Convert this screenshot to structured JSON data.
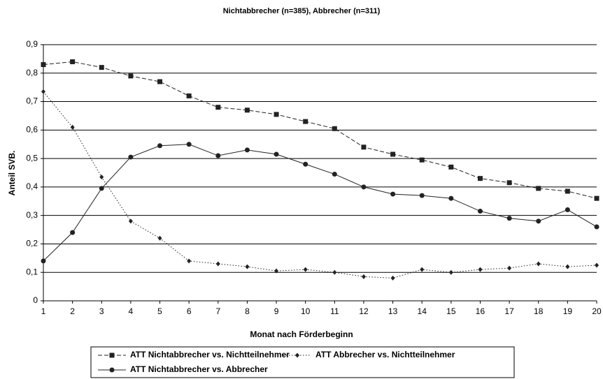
{
  "chart_data": {
    "type": "line",
    "title": "Nichtabbrecher (n=385), Abbrecher (n=311)",
    "x_label": "Monat nach Förderbeginn",
    "y_label": "Anteil SVB.",
    "x": [
      1,
      2,
      3,
      4,
      5,
      6,
      7,
      8,
      9,
      10,
      11,
      12,
      13,
      14,
      15,
      16,
      17,
      18,
      19,
      20
    ],
    "xlim": [
      1,
      20
    ],
    "xticks": [
      1,
      2,
      3,
      4,
      5,
      6,
      7,
      8,
      9,
      10,
      11,
      12,
      13,
      14,
      15,
      16,
      17,
      18,
      19,
      20
    ],
    "ylim": [
      0,
      0.9
    ],
    "yticks": [
      0,
      {
        "value": 0.1,
        "label": "0,1"
      },
      {
        "value": 0.2,
        "label": "0,2"
      },
      {
        "value": 0.3,
        "label": "0,3"
      },
      {
        "value": 0.4,
        "label": "0,4"
      },
      {
        "value": 0.5,
        "label": "0,5"
      },
      {
        "value": 0.6,
        "label": "0,6"
      },
      {
        "value": 0.7,
        "label": "0,7"
      },
      {
        "value": 0.8,
        "label": "0,8"
      },
      {
        "value": 0.9,
        "label": "0,9"
      }
    ],
    "grid": true,
    "legend": "bottom",
    "series": [
      {
        "name": "ATT Nichtabbrecher vs. Nichtteilnehmer",
        "color": "#222222",
        "marker": "square",
        "dash": "dashed",
        "values": [
          0.83,
          0.84,
          0.82,
          0.79,
          0.77,
          0.72,
          0.68,
          0.67,
          0.655,
          0.63,
          0.605,
          0.54,
          0.515,
          0.495,
          0.47,
          0.43,
          0.415,
          0.395,
          0.385,
          0.36
        ]
      },
      {
        "name": "ATT Abbrecher vs. Nichtteilnehmer",
        "color": "#222222",
        "marker": "diamond",
        "dash": "dotted",
        "values": [
          0.735,
          0.61,
          0.435,
          0.28,
          0.22,
          0.14,
          0.13,
          0.12,
          0.105,
          0.11,
          0.1,
          0.085,
          0.08,
          0.11,
          0.1,
          0.11,
          0.115,
          0.13,
          0.12,
          0.125
        ]
      },
      {
        "name": "ATT Nichtabbrecher vs. Abbrecher",
        "color": "#222222",
        "marker": "circle",
        "dash": "solid",
        "values": [
          0.14,
          0.24,
          0.395,
          0.505,
          0.545,
          0.55,
          0.51,
          0.53,
          0.515,
          0.48,
          0.445,
          0.4,
          0.375,
          0.37,
          0.36,
          0.315,
          0.29,
          0.28,
          0.32,
          0.26
        ]
      }
    ]
  }
}
